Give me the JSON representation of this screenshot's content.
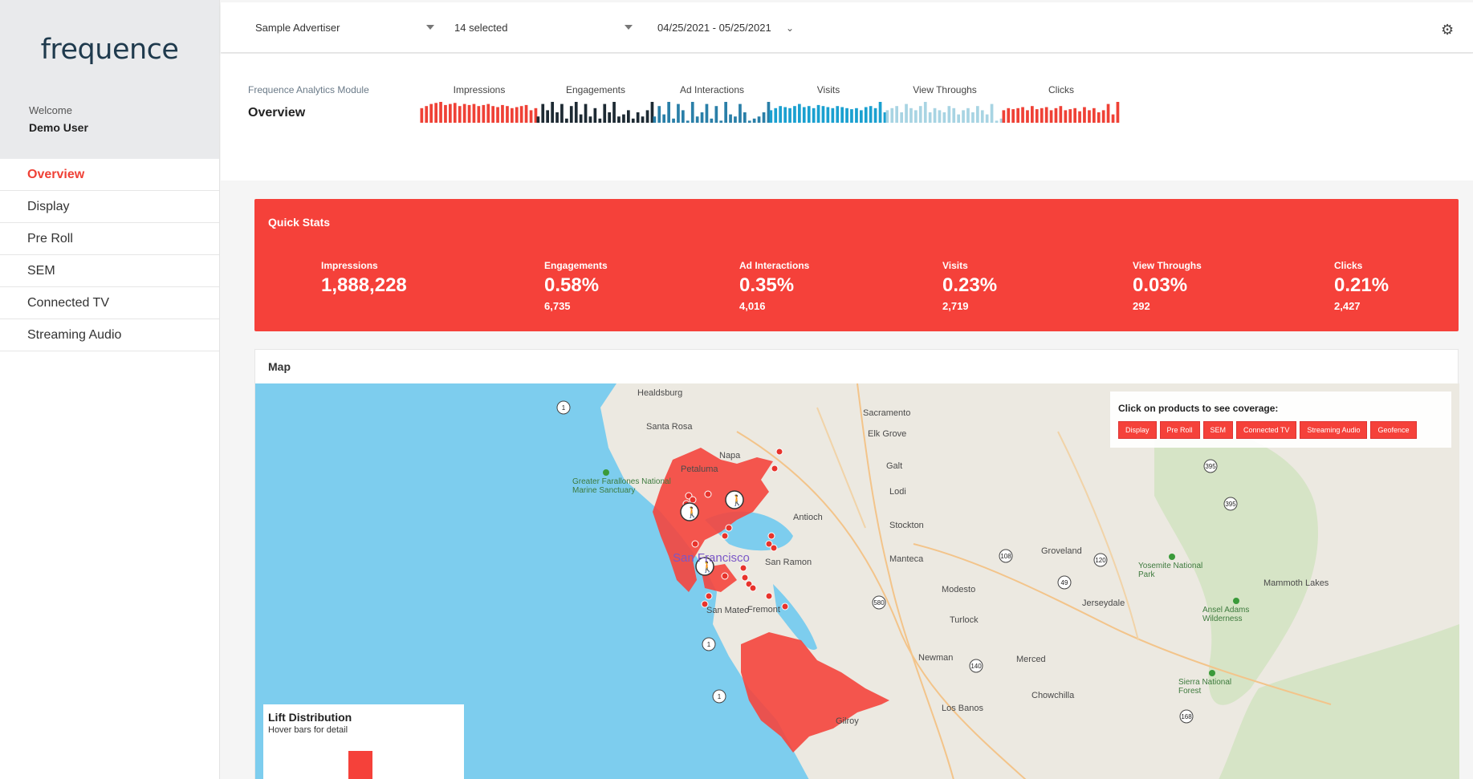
{
  "sidebar": {
    "logo_text": "frequence",
    "welcome": "Welcome",
    "user": "Demo User",
    "nav": [
      "Overview",
      "Display",
      "Pre Roll",
      "SEM",
      "Connected TV",
      "Streaming Audio"
    ],
    "active_index": 0
  },
  "header": {
    "advertiser": "Sample Advertiser",
    "campaigns": "14 selected",
    "date_range": "04/25/2021 - 05/25/2021",
    "settings_icon": "gear-icon"
  },
  "module": {
    "label": "Frequence Analytics Module",
    "title": "Overview",
    "sparklines": [
      {
        "label": "Impressions",
        "color": "#ef4136",
        "values": [
          0.7,
          0.8,
          0.9,
          0.95,
          1.0,
          0.85,
          0.9,
          0.95,
          0.8,
          0.9,
          0.85,
          0.9,
          0.8,
          0.85,
          0.9,
          0.8,
          0.75,
          0.85,
          0.8,
          0.7,
          0.75,
          0.8,
          0.85,
          0.6,
          0.7
        ]
      },
      {
        "label": "Engagements",
        "color": "#1d2a33",
        "values": [
          0.3,
          0.9,
          0.6,
          1.0,
          0.5,
          0.9,
          0.2,
          0.8,
          1.0,
          0.4,
          0.9,
          0.3,
          0.7,
          0.2,
          0.9,
          0.5,
          1.0,
          0.3,
          0.4,
          0.6,
          0.2,
          0.5,
          0.3,
          0.6,
          1.0
        ]
      },
      {
        "label": "Ad Interactions",
        "color": "#2a7fa8",
        "values": [
          0.3,
          0.8,
          0.4,
          1.0,
          0.2,
          0.9,
          0.6,
          0.1,
          1.0,
          0.3,
          0.5,
          0.9,
          0.2,
          0.8,
          0.1,
          1.0,
          0.4,
          0.3,
          0.9,
          0.5,
          0.1,
          0.2,
          0.3,
          0.5,
          1.0
        ]
      },
      {
        "label": "Visits",
        "color": "#1aa0d0",
        "values": [
          0.6,
          0.7,
          0.8,
          0.75,
          0.7,
          0.8,
          0.9,
          0.75,
          0.8,
          0.7,
          0.85,
          0.8,
          0.75,
          0.7,
          0.8,
          0.75,
          0.7,
          0.65,
          0.7,
          0.6,
          0.75,
          0.8,
          0.7,
          1.0,
          0.5
        ]
      },
      {
        "label": "View Throughs",
        "color": "#a8d4e3",
        "values": [
          0.6,
          0.7,
          0.8,
          0.5,
          0.9,
          0.7,
          0.6,
          0.8,
          1.0,
          0.5,
          0.7,
          0.6,
          0.5,
          0.8,
          0.7,
          0.4,
          0.6,
          0.7,
          0.5,
          0.8,
          0.6,
          0.4,
          0.9,
          0.1,
          0.2
        ]
      },
      {
        "label": "Clicks",
        "color": "#ef4136",
        "values": [
          0.6,
          0.7,
          0.65,
          0.7,
          0.75,
          0.6,
          0.8,
          0.65,
          0.7,
          0.75,
          0.6,
          0.7,
          0.8,
          0.6,
          0.65,
          0.7,
          0.55,
          0.75,
          0.6,
          0.7,
          0.5,
          0.6,
          0.9,
          0.4,
          1.0
        ]
      }
    ]
  },
  "quick_stats": {
    "title": "Quick Stats",
    "stats": [
      {
        "label": "Impressions",
        "value": "1,888,228",
        "sub": ""
      },
      {
        "label": "Engagements",
        "value": "0.58%",
        "sub": "6,735"
      },
      {
        "label": "Ad Interactions",
        "value": "0.35%",
        "sub": "4,016"
      },
      {
        "label": "Visits",
        "value": "0.23%",
        "sub": "2,719"
      },
      {
        "label": "View Throughs",
        "value": "0.03%",
        "sub": "292"
      },
      {
        "label": "Clicks",
        "value": "0.21%",
        "sub": "2,427"
      }
    ]
  },
  "map": {
    "title": "Map",
    "coverage_title": "Click on products to see coverage:",
    "coverage_buttons": [
      "Display",
      "Pre Roll",
      "SEM",
      "Connected TV",
      "Streaming Audio",
      "Geofence"
    ],
    "lift_title": "Lift Distribution",
    "lift_sub": "Hover bars for detail",
    "places": [
      "Healdsburg",
      "Santa Rosa",
      "Petaluma",
      "Napa",
      "Sacramento",
      "Elk Grove",
      "Galt",
      "Lodi",
      "Stockton",
      "Antioch",
      "San Ramon",
      "San Francisco",
      "San Mateo",
      "Fremont",
      "Manteca",
      "Modesto",
      "Turlock",
      "Newman",
      "Merced",
      "Groveland",
      "Jerseydale",
      "Los Banos",
      "Chowchilla",
      "Gilroy",
      "Mammoth Lakes"
    ],
    "parks": [
      "Greater Farallones National Marine Sanctuary",
      "Yosemite National Park",
      "Ansel Adams Wilderness",
      "Sierra National Forest"
    ],
    "route_shields": [
      "1",
      "1",
      "1",
      "395",
      "395",
      "108",
      "120",
      "49",
      "140",
      "168",
      "580"
    ],
    "colors": {
      "water": "#7dcdee",
      "land": "#ece9e1",
      "coverage": "#f5453d",
      "forest": "#cfe2bc"
    }
  }
}
